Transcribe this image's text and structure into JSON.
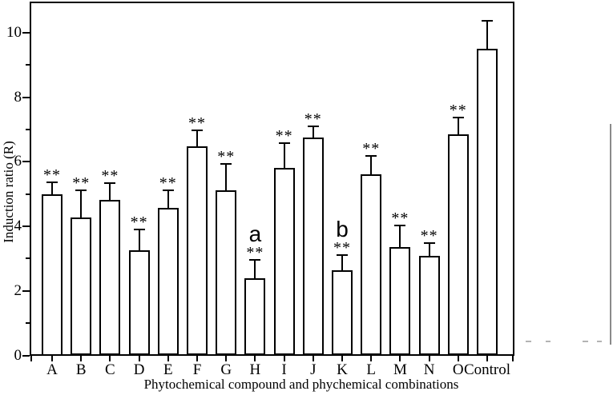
{
  "figure": {
    "background": "#ffffff",
    "ink_color": "#000000"
  },
  "chart_data": {
    "type": "bar",
    "title": "",
    "xlabel": "Phytochemical compound and phychemical combinations",
    "ylabel": "Induction ratio (R)",
    "categories": [
      "A",
      "B",
      "C",
      "D",
      "E",
      "F",
      "G",
      "H",
      "I",
      "J",
      "K",
      "L",
      "M",
      "N",
      "O",
      "Control"
    ],
    "values": [
      5.0,
      4.28,
      4.82,
      3.27,
      4.57,
      6.49,
      5.13,
      2.38,
      5.81,
      6.75,
      2.64,
      5.61,
      3.36,
      3.09,
      6.85,
      9.51
    ],
    "errors_upper": [
      0.37,
      0.84,
      0.52,
      0.64,
      0.55,
      0.49,
      0.8,
      0.59,
      0.77,
      0.36,
      0.47,
      0.58,
      0.67,
      0.38,
      0.53,
      0.85
    ],
    "significance_marks": [
      "**",
      "**",
      "**",
      "**",
      "**",
      "**",
      "**",
      "**",
      "**",
      "**",
      "**",
      "**",
      "**",
      "**",
      "**",
      ""
    ],
    "letter_annotations": [
      "",
      "",
      "",
      "",
      "",
      "",
      "",
      "a",
      "",
      "",
      "b",
      "",
      "",
      "",
      "",
      ""
    ],
    "yticks": [
      0,
      2,
      4,
      6,
      8,
      10
    ],
    "yticks_minor": [
      1,
      3,
      5,
      7,
      9
    ],
    "ylim": [
      0,
      11
    ],
    "bar_fill": "#ffffff",
    "bar_edge": "#000000",
    "grid": "off",
    "legend": "none"
  },
  "artifacts": {
    "scan_line_color": "#8a8a8a",
    "dash_color": "#9a9a9a"
  }
}
